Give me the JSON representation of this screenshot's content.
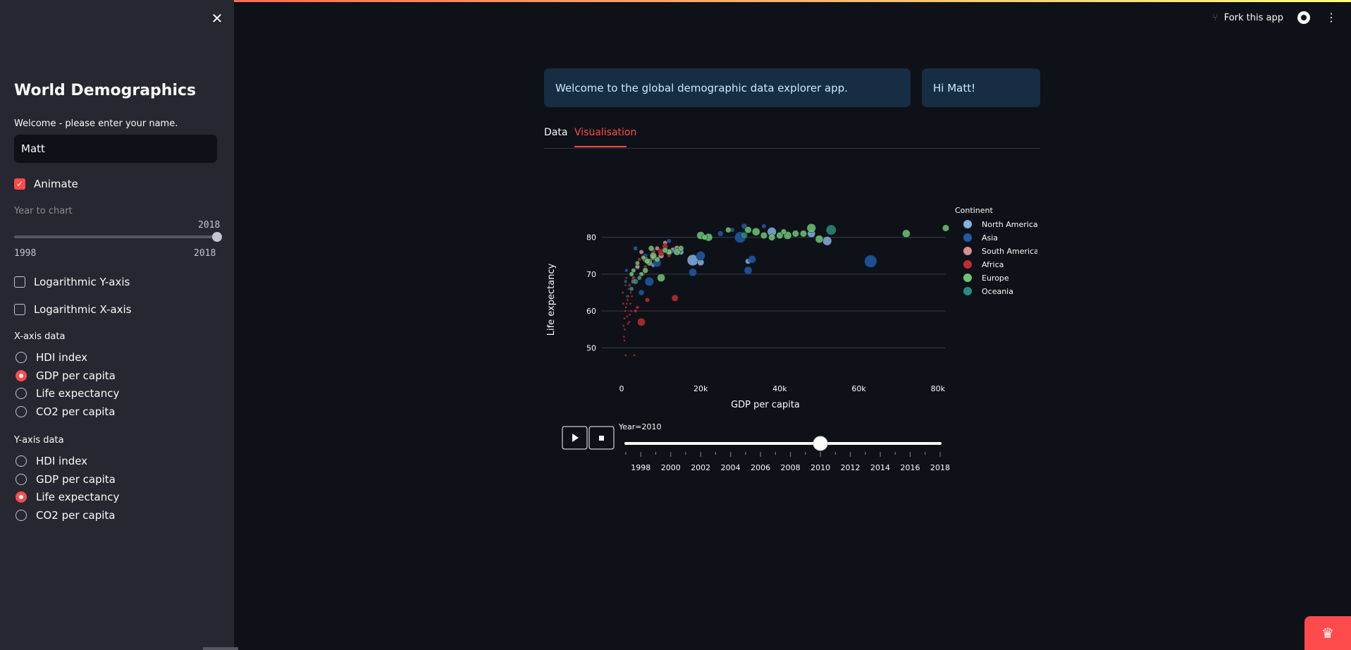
{
  "header": {
    "fork_label": "Fork this app"
  },
  "sidebar": {
    "title": "World Demographics",
    "name_label": "Welcome - please enter your name.",
    "name_value": "Matt",
    "animate_label": "Animate",
    "year_label": "Year to chart",
    "year_value": "2018",
    "year_min": "1998",
    "year_max": "2018",
    "log_y_label": "Logarithmic Y-axis",
    "log_x_label": "Logarithmic X-axis",
    "x_axis_title": "X-axis data",
    "y_axis_title": "Y-axis data",
    "x_options": [
      "HDI index",
      "GDP per capita",
      "Life expectancy",
      "CO2 per capita"
    ],
    "x_selected": 1,
    "y_options": [
      "HDI index",
      "GDP per capita",
      "Life expectancy",
      "CO2 per capita"
    ],
    "y_selected": 2
  },
  "main": {
    "welcome": "Welcome to the global demographic data explorer app.",
    "greeting": "Hi Matt!",
    "tabs": [
      "Data",
      "Visualisation"
    ],
    "active_tab": 1
  },
  "chart_data": {
    "type": "scatter",
    "xlabel": "GDP per capita",
    "ylabel": "Life expectancy",
    "xlim": [
      -5000,
      82000
    ],
    "ylim": [
      43,
      87
    ],
    "xticks": [
      0,
      20000,
      40000,
      60000,
      80000
    ],
    "xtick_labels": [
      "0",
      "20k",
      "40k",
      "60k",
      "80k"
    ],
    "yticks": [
      50,
      60,
      70,
      80
    ],
    "grid": true,
    "legend_title": "Continent",
    "legend_position": "right",
    "year_label": "Year=2010",
    "slider_years": [
      "1998",
      "2000",
      "2002",
      "2004",
      "2006",
      "2008",
      "2010",
      "2012",
      "2014",
      "2016",
      "2018"
    ],
    "slider_value": 2010,
    "slider_range": [
      1997,
      2018
    ],
    "series": [
      {
        "name": "North America",
        "color": "#83b2e0",
        "points": [
          [
            18000,
            73.8,
            10
          ],
          [
            20000,
            73.2,
            6
          ],
          [
            15000,
            76,
            5
          ],
          [
            48000,
            81,
            7
          ],
          [
            38000,
            81.5,
            8
          ],
          [
            52000,
            79,
            8
          ],
          [
            32000,
            73.5,
            5
          ],
          [
            13000,
            76.5,
            5
          ],
          [
            8000,
            72.5,
            4
          ]
        ]
      },
      {
        "name": "Asia",
        "color": "#1f5aa6",
        "points": [
          [
            63000,
            73.5,
            11
          ],
          [
            30000,
            80,
            10
          ],
          [
            18000,
            70.5,
            7
          ],
          [
            20000,
            75,
            8
          ],
          [
            32000,
            71,
            7
          ],
          [
            33000,
            74,
            7
          ],
          [
            25000,
            81,
            5
          ],
          [
            31000,
            83,
            5
          ],
          [
            36000,
            83,
            4
          ],
          [
            9000,
            73,
            7
          ],
          [
            7000,
            68,
            8
          ],
          [
            5000,
            65,
            5
          ],
          [
            3000,
            69,
            4
          ],
          [
            2000,
            67,
            3
          ],
          [
            1500,
            64,
            3
          ],
          [
            4000,
            72,
            5
          ],
          [
            6000,
            75,
            4
          ],
          [
            8000,
            76.5,
            4
          ],
          [
            10000,
            75,
            5
          ],
          [
            2500,
            70,
            4
          ],
          [
            1000,
            68,
            3
          ],
          [
            1200,
            71,
            3
          ],
          [
            3500,
            77,
            4
          ],
          [
            12000,
            79,
            4
          ],
          [
            28000,
            82,
            4
          ]
        ]
      },
      {
        "name": "South America",
        "color": "#d68d94",
        "points": [
          [
            12000,
            76,
            6
          ],
          [
            10000,
            75,
            5
          ],
          [
            8000,
            74.5,
            5
          ],
          [
            6000,
            74,
            5
          ],
          [
            5000,
            76,
            4
          ],
          [
            9000,
            77,
            4
          ],
          [
            11000,
            78.5,
            4
          ],
          [
            7000,
            73.5,
            5
          ],
          [
            4000,
            72,
            4
          ],
          [
            14000,
            77,
            5
          ],
          [
            3000,
            68,
            4
          ]
        ]
      },
      {
        "name": "Africa",
        "color": "#c02c31",
        "points": [
          [
            13500,
            63.5,
            6
          ],
          [
            5000,
            57,
            7
          ],
          [
            6500,
            63,
            4
          ],
          [
            4000,
            61,
            3
          ],
          [
            3500,
            60,
            3
          ],
          [
            1000,
            48,
            2
          ],
          [
            3200,
            48,
            2
          ],
          [
            500,
            56,
            2
          ],
          [
            700,
            58,
            2
          ],
          [
            900,
            60,
            2
          ],
          [
            1100,
            61,
            2
          ],
          [
            1300,
            62,
            2
          ],
          [
            1500,
            63,
            2
          ],
          [
            1700,
            64,
            2
          ],
          [
            1900,
            57,
            2
          ],
          [
            2100,
            59,
            2
          ],
          [
            2300,
            65,
            2
          ],
          [
            2500,
            66,
            2
          ],
          [
            800,
            55,
            2
          ],
          [
            600,
            53,
            2
          ],
          [
            700,
            52,
            2
          ],
          [
            1400,
            58.5,
            2
          ],
          [
            1600,
            56.5,
            2
          ],
          [
            1800,
            66,
            2
          ],
          [
            2000,
            67,
            2
          ],
          [
            2200,
            62,
            2
          ],
          [
            2400,
            60,
            2
          ],
          [
            2600,
            64,
            2
          ],
          [
            3000,
            69,
            3
          ],
          [
            10000,
            76,
            6
          ],
          [
            11000,
            77.5,
            5
          ],
          [
            8000,
            76,
            4
          ],
          [
            6000,
            72,
            3
          ],
          [
            4500,
            74,
            3
          ],
          [
            12000,
            75,
            3
          ],
          [
            5500,
            70,
            3
          ],
          [
            400,
            62,
            2
          ],
          [
            300,
            65,
            2
          ],
          [
            1000,
            67,
            2
          ],
          [
            1200,
            69,
            2
          ]
        ]
      },
      {
        "name": "Europe",
        "color": "#6cc576",
        "points": [
          [
            82000,
            82.5,
            6
          ],
          [
            72000,
            81,
            7
          ],
          [
            50000,
            79.5,
            7
          ],
          [
            48000,
            82.5,
            8
          ],
          [
            44000,
            81,
            6
          ],
          [
            42000,
            80.5,
            7
          ],
          [
            40000,
            80.5,
            6
          ],
          [
            38000,
            80,
            6
          ],
          [
            36000,
            80.5,
            6
          ],
          [
            34000,
            81.5,
            7
          ],
          [
            32000,
            82,
            6
          ],
          [
            27000,
            82,
            5
          ],
          [
            22000,
            80,
            7
          ],
          [
            20000,
            80.5,
            7
          ],
          [
            21000,
            80,
            5
          ],
          [
            14000,
            76,
            6
          ],
          [
            15000,
            77,
            5
          ],
          [
            12000,
            76,
            5
          ],
          [
            10000,
            69,
            7
          ],
          [
            9000,
            74,
            5
          ],
          [
            8000,
            75,
            6
          ],
          [
            7000,
            73,
            5
          ],
          [
            6000,
            71,
            5
          ],
          [
            5000,
            70,
            4
          ],
          [
            4000,
            73,
            4
          ],
          [
            3000,
            71,
            4
          ],
          [
            2500,
            70,
            4
          ],
          [
            11000,
            76.5,
            5
          ],
          [
            7500,
            77,
            5
          ],
          [
            6500,
            73.5,
            5
          ],
          [
            4500,
            69,
            4
          ],
          [
            5500,
            74.5,
            4
          ],
          [
            46000,
            81,
            6
          ],
          [
            41000,
            81.5,
            5
          ]
        ]
      },
      {
        "name": "Oceania",
        "color": "#2b8a7e",
        "points": [
          [
            53000,
            82,
            9
          ],
          [
            31000,
            80.5,
            6
          ],
          [
            3500,
            68,
            5
          ],
          [
            2500,
            66,
            4
          ],
          [
            4500,
            69,
            4
          ]
        ]
      }
    ]
  }
}
